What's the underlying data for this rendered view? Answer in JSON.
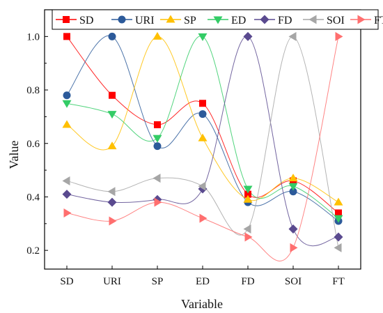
{
  "chart_data": {
    "type": "line",
    "categories": [
      "SD",
      "URI",
      "SP",
      "ED",
      "FD",
      "SOI",
      "FT"
    ],
    "xlabel": "Variable",
    "ylabel": "Value",
    "ylim": [
      0.13,
      1.1
    ],
    "yticks": [
      0.2,
      0.4,
      0.6,
      0.8,
      1.0
    ],
    "ytick_labels": [
      "0.2",
      "0.4",
      "0.6",
      "0.8",
      "1.0"
    ],
    "grid": false,
    "legend_position": "top",
    "series": [
      {
        "name": "SD",
        "color": "#ff0000",
        "marker": "square",
        "values": [
          1.0,
          0.78,
          0.67,
          0.75,
          0.41,
          0.46,
          0.34
        ]
      },
      {
        "name": "URI",
        "color": "#2c5a9a",
        "marker": "circle",
        "values": [
          0.78,
          1.0,
          0.59,
          0.71,
          0.38,
          0.42,
          0.31
        ]
      },
      {
        "name": "SP",
        "color": "#ffc000",
        "marker": "triangle-up",
        "values": [
          0.67,
          0.59,
          1.0,
          0.62,
          0.39,
          0.47,
          0.38
        ]
      },
      {
        "name": "ED",
        "color": "#33cc66",
        "marker": "triangle-down",
        "values": [
          0.75,
          0.71,
          0.62,
          1.0,
          0.43,
          0.44,
          0.32
        ]
      },
      {
        "name": "FD",
        "color": "#5a4a8f",
        "marker": "diamond",
        "values": [
          0.41,
          0.38,
          0.39,
          0.43,
          1.0,
          0.28,
          0.25
        ]
      },
      {
        "name": "SOI",
        "color": "#a6a6a6",
        "marker": "triangle-left",
        "values": [
          0.46,
          0.42,
          0.47,
          0.44,
          0.28,
          1.0,
          0.21
        ]
      },
      {
        "name": "FT",
        "color": "#ff6f6f",
        "marker": "triangle-right",
        "values": [
          0.34,
          0.31,
          0.38,
          0.32,
          0.25,
          0.21,
          1.0
        ]
      }
    ]
  }
}
